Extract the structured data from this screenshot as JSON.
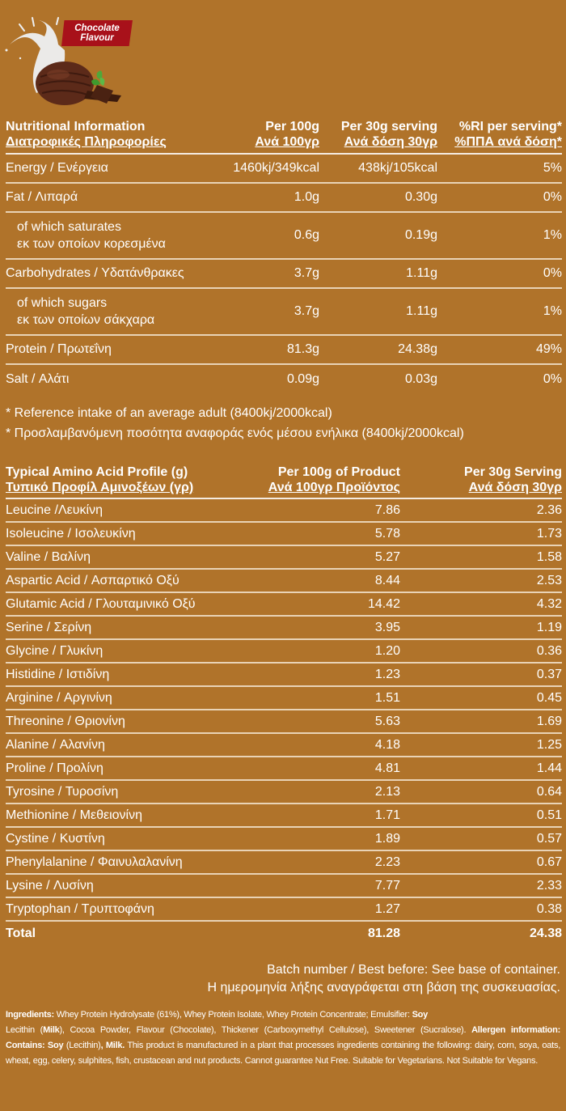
{
  "hero": {
    "badge_line1": "Chocolate",
    "badge_line2": "Flavour",
    "badge_color": "#a8111a",
    "image": "chocolate-ice-cream-scoop-with-milk-splash-and-mint"
  },
  "colors": {
    "background": "#b0732a",
    "text": "#ffffff",
    "divider": "#e9d3b6"
  },
  "nutrition": {
    "headers": {
      "col0_en": "Nutritional Information",
      "col0_gr": "Διατροφικές Πληροφορίες",
      "col1_en": "Per 100g",
      "col1_gr": "Ανά 100γρ",
      "col2_en": "Per 30g serving",
      "col2_gr": "Ανά δόση 30γρ",
      "col3_en": "%RI per serving*",
      "col3_gr": "%ΠΠΑ ανά δόση*"
    },
    "rows": [
      {
        "label_en": "Energy / Ενέργεια",
        "label_gr": "",
        "per100": "1460kj/349kcal",
        "per30": "438kj/105kcal",
        "ri": "5%"
      },
      {
        "label_en": "Fat / Λιπαρά",
        "label_gr": "",
        "per100": "1.0g",
        "per30": "0.30g",
        "ri": "0%"
      },
      {
        "label_en": "of which saturates",
        "label_gr": "εκ των οποίων κορεσμένα",
        "per100": "0.6g",
        "per30": "0.19g",
        "ri": "1%"
      },
      {
        "label_en": "Carbohydrates / Υδατάνθρακες",
        "label_gr": "",
        "per100": "3.7g",
        "per30": "1.11g",
        "ri": "0%"
      },
      {
        "label_en": "of which sugars",
        "label_gr": "εκ των οποίων σάκχαρα",
        "per100": "3.7g",
        "per30": "1.11g",
        "ri": "1%"
      },
      {
        "label_en": "Protein / Πρωτεΐνη",
        "label_gr": "",
        "per100": "81.3g",
        "per30": "24.38g",
        "ri": "49%"
      },
      {
        "label_en": "Salt / Αλάτι",
        "label_gr": "",
        "per100": "0.09g",
        "per30": "0.03g",
        "ri": "0%"
      }
    ]
  },
  "footnotes": {
    "en": "* Reference intake of an average adult (8400kj/2000kcal)",
    "gr": "* Προσλαμβανόμενη ποσότητα αναφοράς ενός μέσου ενήλικα (8400kj/2000kcal)"
  },
  "amino": {
    "headers": {
      "col0_en": "Typical Amino Acid Profile (g)",
      "col0_gr": "Τυπικό Προφίλ Αμινοξέων (γρ)",
      "col1_en": "Per 100g of Product",
      "col1_gr": "Ανά 100γρ Προϊόντος",
      "col2_en": "Per 30g Serving",
      "col2_gr": "Ανά δόση 30γρ"
    },
    "rows": [
      {
        "name": "Leucine /Λευκίνη",
        "per100": "7.86",
        "per30": "2.36"
      },
      {
        "name": "Isoleucine / Ισολευκίνη",
        "per100": "5.78",
        "per30": "1.73"
      },
      {
        "name": "Valine / Βαλίνη",
        "per100": "5.27",
        "per30": "1.58"
      },
      {
        "name": "Aspartic Acid / Ασπαρτικό Οξύ",
        "per100": "8.44",
        "per30": "2.53"
      },
      {
        "name": "Glutamic Acid / Γλουταμινικό Οξύ",
        "per100": "14.42",
        "per30": "4.32"
      },
      {
        "name": "Serine / Σερίνη",
        "per100": "3.95",
        "per30": "1.19"
      },
      {
        "name": "Glycine / Γλυκίνη",
        "per100": "1.20",
        "per30": "0.36"
      },
      {
        "name": "Histidine / Ιστιδίνη",
        "per100": "1.23",
        "per30": "0.37"
      },
      {
        "name": "Arginine / Αργινίνη",
        "per100": "1.51",
        "per30": "0.45"
      },
      {
        "name": "Threonine / Θριονίνη",
        "per100": "5.63",
        "per30": "1.69"
      },
      {
        "name": "Alanine / Αλανίνη",
        "per100": "4.18",
        "per30": "1.25"
      },
      {
        "name": "Proline / Προλίνη",
        "per100": "4.81",
        "per30": "1.44"
      },
      {
        "name": "Tyrosine / Τυροσίνη",
        "per100": "2.13",
        "per30": "0.64"
      },
      {
        "name": "Methionine / Μεθειονίνη",
        "per100": "1.71",
        "per30": "0.51"
      },
      {
        "name": "Cystine / Κυστίνη",
        "per100": "1.89",
        "per30": "0.57"
      },
      {
        "name": "Phenylalanine / Φαινυλαλανίνη",
        "per100": "2.23",
        "per30": "0.67"
      },
      {
        "name": "Lysine / Λυσίνη",
        "per100": "7.77",
        "per30": "2.33"
      },
      {
        "name": "Tryptophan / Τρυπτοφάνη",
        "per100": "1.27",
        "per30": "0.38"
      }
    ],
    "total": {
      "name": "Total",
      "per100": "81.28",
      "per30": "24.38"
    }
  },
  "batch": {
    "en": "Batch number / Best before: See base of container.",
    "gr": "Η ημερομηνία λήξης αναγράφεται στη βάση της συσκευασίας."
  },
  "ingredients": {
    "label": "Ingredients:",
    "part1": " Whey Protein Hydrolysate (61%), Whey Protein Isolate, Whey Protein Concentrate; Emulsifier: ",
    "soy1": "Soy",
    "part2": "Lecithin (",
    "milk1": "Milk",
    "part3": "), Cocoa Powder, Flavour (Chocolate), Thickener (Carboxymethyl Cellulose), Sweetener (Sucralose). ",
    "allergen_label": "Allergen information: Contains: Soy",
    "part4": " (Lecithin)",
    "milk2": ", Milk.",
    "part5": " This product is manufactured in a plant that processes ingredients containing the following: dairy, corn, soya, oats, wheat, egg, celery, sulphites, fish, crustacean and nut products. Cannot guarantee Nut Free. Suitable for Vegetarians. Not Suitable for Vegans."
  }
}
